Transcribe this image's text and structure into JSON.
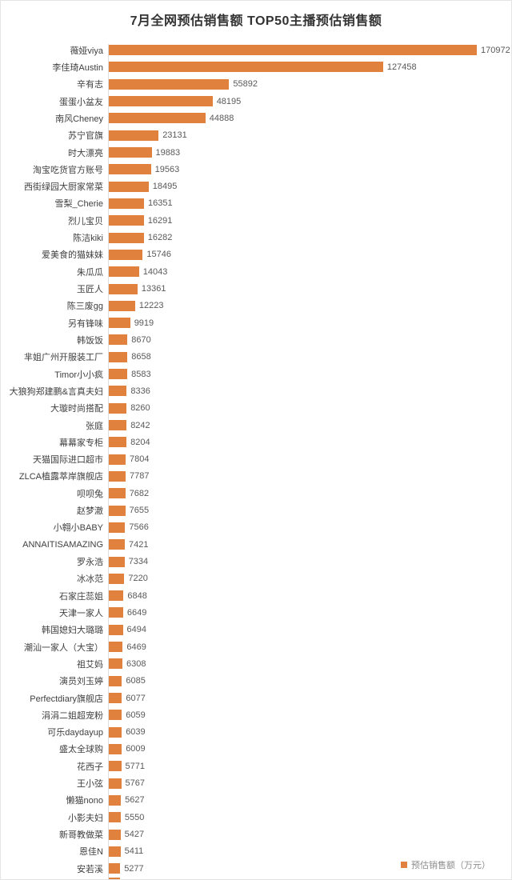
{
  "header": {
    "title": "7月全网预估销售额  TOP50主播预估销售额"
  },
  "legend": {
    "label": "预估销售额（万元）",
    "swatch_color": "#E0813E"
  },
  "colors": {
    "bar": "#E0813E",
    "title_text": "#333333",
    "category_text": "#404040",
    "value_text": "#595959",
    "legend_text": "#8c8c8c",
    "axis_line": "#dedede",
    "background": "#ffffff"
  },
  "chart_data": {
    "type": "bar",
    "orientation": "horizontal",
    "title": "7月全网预估销售额  TOP50主播预估销售额",
    "xlabel": "",
    "ylabel": "",
    "unit": "万元",
    "legend": [
      "预估销售额（万元）"
    ],
    "legend_position": "bottom-right",
    "grid": false,
    "scale_max": 170972,
    "bar_color": "#E0813E",
    "partial_row_visible_at_bottom": true,
    "categories": [
      "薇娅viya",
      "李佳琦Austin",
      "辛有志",
      "蛋蛋小盆友",
      "南风Cheney",
      "苏宁官旗",
      "时大漂亮",
      "淘宝吃货官方账号",
      "西街绿园大厨家常菜",
      "雪梨_Cherie",
      "烈儿宝贝",
      "陈洁kiki",
      "爱美食的猫妹妹",
      "朱瓜瓜",
      "玉匠人",
      "陈三废gg",
      "另有锋味",
      "韩饭饭",
      "芈姐广州开服装工厂",
      "Timor小小疯",
      "大狼狗郑建鹏&言真夫妇",
      "大璇时尚搭配",
      "张庭",
      "幕幕家专柜",
      "天猫国际进口超市",
      "ZLCA植露萃岸旗舰店",
      "呗呗兔",
      "赵梦澈",
      "小翱小BABY",
      "ANNAITISAMAZING",
      "罗永浩",
      "冰冰范",
      "石家庄蕊姐",
      "天津一家人",
      "韩国媳妇大璐璐",
      "潮汕一家人（大宝）",
      "祖艾妈",
      "演员刘玉婷",
      "Perfectdiary旗舰店",
      "涓涓二姐超宠粉",
      "可乐daydayup",
      "盛太全球购",
      "花西子",
      "王小弦",
      "懒猫nono",
      "小影夫妇",
      "新哥教做菜",
      "恩佳N",
      "安若溪"
    ],
    "values": [
      170972,
      127458,
      55892,
      48195,
      44888,
      23131,
      19883,
      19563,
      18495,
      16351,
      16291,
      16282,
      15746,
      14043,
      13361,
      12223,
      9919,
      8670,
      8658,
      8583,
      8336,
      8260,
      8242,
      8204,
      7804,
      7787,
      7682,
      7655,
      7566,
      7421,
      7334,
      7220,
      6848,
      6649,
      6494,
      6469,
      6308,
      6085,
      6077,
      6059,
      6039,
      6009,
      5771,
      5767,
      5627,
      5550,
      5427,
      5411,
      5277
    ]
  }
}
